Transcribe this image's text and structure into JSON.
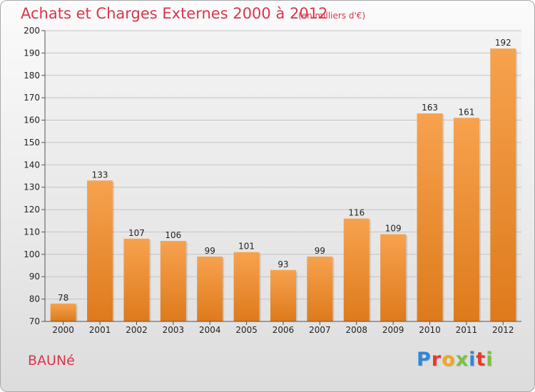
{
  "header": {
    "title": "Achats et Charges Externes 2000 à 2012",
    "subtitle": "(en milliers d'€)"
  },
  "footer": {
    "town": "BAUNé",
    "brand": "Proxiti"
  },
  "colors": {
    "title": "#d9364b",
    "bar_light": "#f7a14c",
    "bar_dark": "#e07d1f",
    "logo_letters": [
      "#2e88d8",
      "#e8392f",
      "#f2a81d",
      "#7cc142",
      "#2e88d8",
      "#e8392f",
      "#7cc142"
    ]
  },
  "chart_data": {
    "type": "bar",
    "title": "Achats et Charges Externes 2000 à 2012",
    "xlabel": "",
    "ylabel": "",
    "categories": [
      "2000",
      "2001",
      "2002",
      "2003",
      "2004",
      "2005",
      "2006",
      "2007",
      "2008",
      "2009",
      "2010",
      "2011",
      "2012"
    ],
    "values": [
      78,
      133,
      107,
      106,
      99,
      101,
      93,
      99,
      116,
      109,
      163,
      161,
      192
    ],
    "ylim": [
      70,
      200
    ],
    "yticks": [
      70,
      80,
      90,
      100,
      110,
      120,
      130,
      140,
      150,
      160,
      170,
      180,
      190,
      200
    ],
    "grid": true,
    "legend": "none"
  }
}
